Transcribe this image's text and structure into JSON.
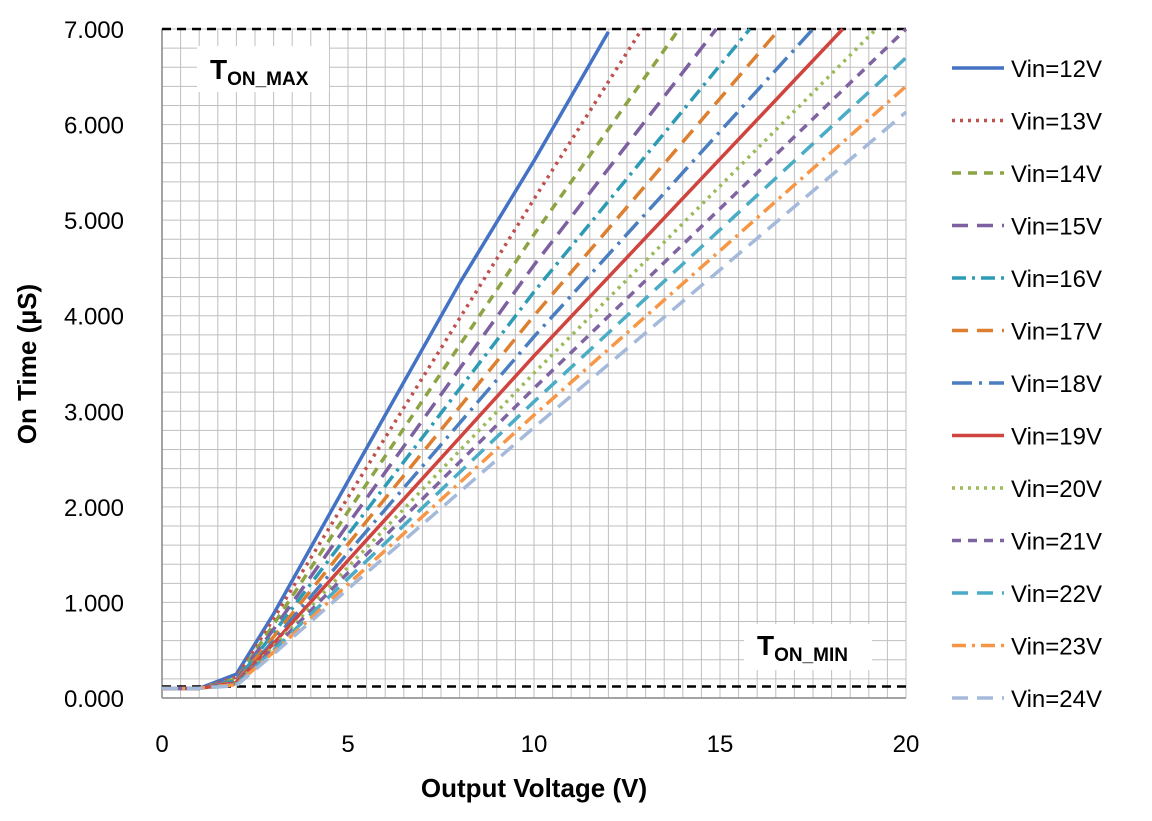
{
  "chart_data": {
    "type": "line",
    "title": "",
    "xlabel": "Output Voltage (V)",
    "ylabel": "On Time (µS)",
    "xlim": [
      0,
      20
    ],
    "ylim": [
      0,
      7
    ],
    "x_ticks": [
      "0",
      "5",
      "10",
      "15",
      "20"
    ],
    "x_tick_values": [
      0,
      5,
      10,
      15,
      20
    ],
    "y_ticks": [
      "0.000",
      "1.000",
      "2.000",
      "3.000",
      "4.000",
      "5.000",
      "6.000",
      "7.000"
    ],
    "y_tick_values": [
      0,
      1,
      2,
      3,
      4,
      5,
      6,
      7
    ],
    "grid": true,
    "legend_position": "right",
    "annotations": [
      {
        "id": "ton-max",
        "main": "T",
        "sub": "ON_MAX"
      },
      {
        "id": "ton-min",
        "main": "T",
        "sub": "ON_MIN"
      }
    ],
    "reference_lines": [
      {
        "name": "T_ON_MAX",
        "y": 7.0,
        "color": "#000000",
        "dash": "dashed"
      },
      {
        "name": "T_ON_MIN",
        "y": 0.12,
        "color": "#000000",
        "dash": "dashed"
      }
    ],
    "series": [
      {
        "name": "Vin=12V",
        "color": "#4472C4",
        "dash": "solid",
        "points": [
          [
            0,
            0.1
          ],
          [
            1,
            0.1
          ],
          [
            2,
            0.25
          ],
          [
            3,
            0.88
          ],
          [
            5,
            2.27
          ],
          [
            8,
            4.34
          ],
          [
            10,
            5.62
          ],
          [
            12,
            6.97
          ]
        ]
      },
      {
        "name": "Vin=13V",
        "color": "#C0504D",
        "dash": "dot",
        "points": [
          [
            0,
            0.1
          ],
          [
            1,
            0.1
          ],
          [
            2,
            0.22
          ],
          [
            3,
            0.83
          ],
          [
            5,
            2.1
          ],
          [
            10,
            5.22
          ],
          [
            12.9,
            7.0
          ]
        ]
      },
      {
        "name": "Vin=14V",
        "color": "#8CA443",
        "dash": "dash",
        "points": [
          [
            0,
            0.1
          ],
          [
            1,
            0.1
          ],
          [
            2,
            0.2
          ],
          [
            3,
            0.77
          ],
          [
            5,
            1.95
          ],
          [
            10,
            4.85
          ],
          [
            13.9,
            7.0
          ]
        ]
      },
      {
        "name": "Vin=15V",
        "color": "#7D60A0",
        "dash": "longdash",
        "points": [
          [
            0,
            0.1
          ],
          [
            1,
            0.1
          ],
          [
            2,
            0.19
          ],
          [
            3,
            0.72
          ],
          [
            5,
            1.82
          ],
          [
            10,
            4.53
          ],
          [
            14.9,
            7.0
          ]
        ]
      },
      {
        "name": "Vin=16V",
        "color": "#2E9BB5",
        "dash": "dashdot",
        "points": [
          [
            0,
            0.1
          ],
          [
            1,
            0.1
          ],
          [
            2,
            0.18
          ],
          [
            3,
            0.68
          ],
          [
            5,
            1.71
          ],
          [
            10,
            4.25
          ],
          [
            15.8,
            7.0
          ]
        ]
      },
      {
        "name": "Vin=17V",
        "color": "#DD7F2E",
        "dash": "longdash",
        "points": [
          [
            0,
            0.1
          ],
          [
            1,
            0.1
          ],
          [
            2,
            0.17
          ],
          [
            3,
            0.64
          ],
          [
            5,
            1.61
          ],
          [
            10,
            4.0
          ],
          [
            16.6,
            7.0
          ]
        ]
      },
      {
        "name": "Vin=18V",
        "color": "#4A7EC0",
        "dash": "longdashdot",
        "points": [
          [
            0,
            0.1
          ],
          [
            1,
            0.1
          ],
          [
            2,
            0.16
          ],
          [
            3,
            0.6
          ],
          [
            5,
            1.52
          ],
          [
            10,
            3.78
          ],
          [
            17.5,
            7.0
          ]
        ]
      },
      {
        "name": "Vin=19V",
        "color": "#D0443F",
        "dash": "solid",
        "points": [
          [
            0,
            0.1
          ],
          [
            1,
            0.1
          ],
          [
            2,
            0.16
          ],
          [
            3,
            0.57
          ],
          [
            5,
            1.44
          ],
          [
            10,
            3.58
          ],
          [
            18.3,
            7.0
          ]
        ]
      },
      {
        "name": "Vin=20V",
        "color": "#9BBB59",
        "dash": "dot",
        "points": [
          [
            0,
            0.1
          ],
          [
            1,
            0.1
          ],
          [
            2,
            0.15
          ],
          [
            3,
            0.54
          ],
          [
            5,
            1.37
          ],
          [
            10,
            3.4
          ],
          [
            19.2,
            7.0
          ]
        ]
      },
      {
        "name": "Vin=21V",
        "color": "#8064A2",
        "dash": "dash",
        "points": [
          [
            0,
            0.1
          ],
          [
            1,
            0.1
          ],
          [
            2,
            0.15
          ],
          [
            3,
            0.52
          ],
          [
            5,
            1.31
          ],
          [
            10,
            3.24
          ],
          [
            20,
            7.0
          ]
        ]
      },
      {
        "name": "Vin=22V",
        "color": "#4BACC6",
        "dash": "longdash",
        "points": [
          [
            0,
            0.1
          ],
          [
            1,
            0.1
          ],
          [
            2,
            0.14
          ],
          [
            3,
            0.5
          ],
          [
            5,
            1.25
          ],
          [
            10,
            3.1
          ],
          [
            20,
            6.7
          ]
        ]
      },
      {
        "name": "Vin=23V",
        "color": "#F79646",
        "dash": "dashdot",
        "points": [
          [
            0,
            0.1
          ],
          [
            1,
            0.1
          ],
          [
            2,
            0.14
          ],
          [
            3,
            0.48
          ],
          [
            5,
            1.19
          ],
          [
            10,
            2.96
          ],
          [
            20,
            6.4
          ]
        ]
      },
      {
        "name": "Vin=24V",
        "color": "#A5B9DA",
        "dash": "longdash",
        "points": [
          [
            0,
            0.1
          ],
          [
            1,
            0.1
          ],
          [
            2,
            0.13
          ],
          [
            3,
            0.46
          ],
          [
            5,
            1.14
          ],
          [
            10,
            2.83
          ],
          [
            20,
            6.13
          ]
        ]
      }
    ]
  }
}
